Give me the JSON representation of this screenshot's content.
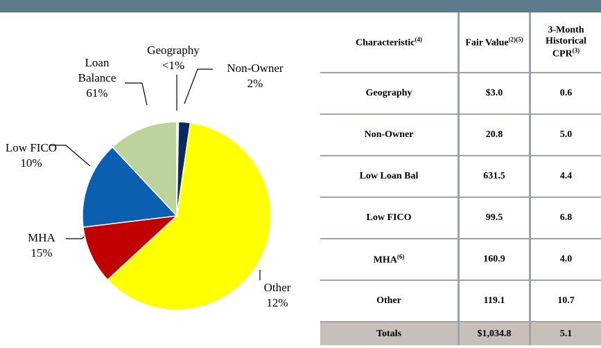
{
  "chart_data": {
    "type": "pie",
    "categories": [
      "Geography",
      "Non-Owner",
      "Loan Balance",
      "Low FICO",
      "MHA",
      "Other"
    ],
    "values": [
      0.3,
      2,
      61,
      10,
      15,
      12
    ],
    "value_labels": [
      "<1%",
      "2%",
      "61%",
      "10%",
      "15%",
      "12%"
    ],
    "colors": [
      "#d9d9d9",
      "#0c2a5c",
      "#ffff00",
      "#c00000",
      "#0b5fb0",
      "#bcd39c"
    ]
  },
  "table": {
    "header": [
      {
        "text": "Characteristic",
        "note": "(4)"
      },
      {
        "text": "Fair Value",
        "note": "(2)(5)"
      },
      {
        "text": "3-Month Historical CPR",
        "note": "(3)"
      }
    ],
    "rows": [
      [
        {
          "text": "Geography"
        },
        "$3.0",
        "0.6"
      ],
      [
        {
          "text": "Non-Owner"
        },
        "20.8",
        "5.0"
      ],
      [
        {
          "text": "Low Loan Bal"
        },
        "631.5",
        "4.4"
      ],
      [
        {
          "text": "Low FICO"
        },
        "99.5",
        "6.8"
      ],
      [
        {
          "text": "MHA",
          "note": "(6)"
        },
        "160.9",
        "4.0"
      ],
      [
        {
          "text": "Other"
        },
        "119.1",
        "10.7"
      ]
    ],
    "totals": [
      "Totals",
      "$1,034.8",
      "5.1"
    ]
  }
}
